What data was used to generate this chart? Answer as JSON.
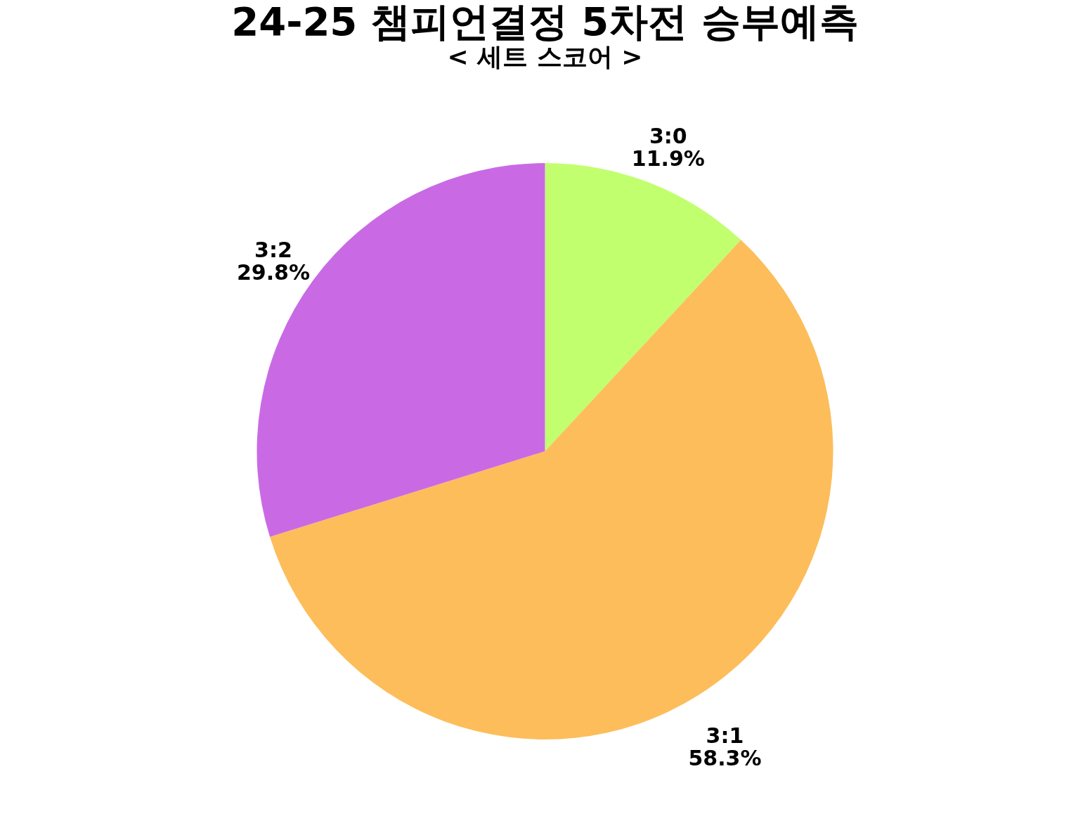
{
  "chart_data": {
    "type": "pie",
    "title": "24-25 챔피언결정 5차전 승부예측",
    "subtitle": "< 세트 스코어 >",
    "categories": [
      "3:0",
      "3:1",
      "3:2"
    ],
    "values": [
      11.9,
      58.3,
      29.8
    ],
    "value_labels": [
      "11.9%",
      "58.3%",
      "29.8%"
    ],
    "colors": [
      "#c1ff6f",
      "#fdbd5a",
      "#c96ae4"
    ],
    "legend": false
  }
}
